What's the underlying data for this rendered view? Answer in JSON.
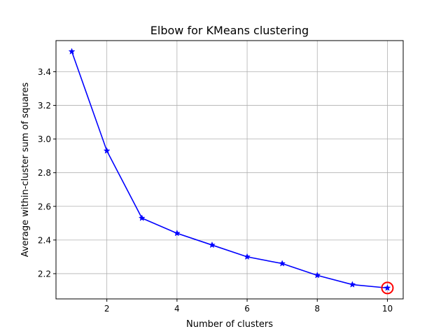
{
  "chart_data": {
    "type": "line",
    "title": "Elbow for KMeans clustering",
    "xlabel": "Number of clusters",
    "ylabel": "Average within-cluster sum of squares",
    "xlim": [
      0.55,
      10.45
    ],
    "ylim": [
      2.05,
      3.585
    ],
    "xticks": [
      2,
      4,
      6,
      8,
      10
    ],
    "xtick_labels": [
      "2",
      "4",
      "6",
      "8",
      "10"
    ],
    "yticks": [
      2.2,
      2.4,
      2.6,
      2.8,
      3.0,
      3.2,
      3.4
    ],
    "ytick_labels": [
      "2.2",
      "2.4",
      "2.6",
      "2.8",
      "3.0",
      "3.2",
      "3.4"
    ],
    "grid": true,
    "x": [
      1,
      2,
      3,
      4,
      5,
      6,
      7,
      8,
      9,
      10
    ],
    "series": [
      {
        "values": [
          3.52,
          2.93,
          2.53,
          2.44,
          2.37,
          2.3,
          2.26,
          2.19,
          2.135,
          2.115
        ],
        "color": "#0000ff",
        "marker": "star"
      }
    ],
    "highlight": {
      "x": 10,
      "y": 2.115,
      "color": "#ff0000",
      "shape": "circle"
    }
  }
}
